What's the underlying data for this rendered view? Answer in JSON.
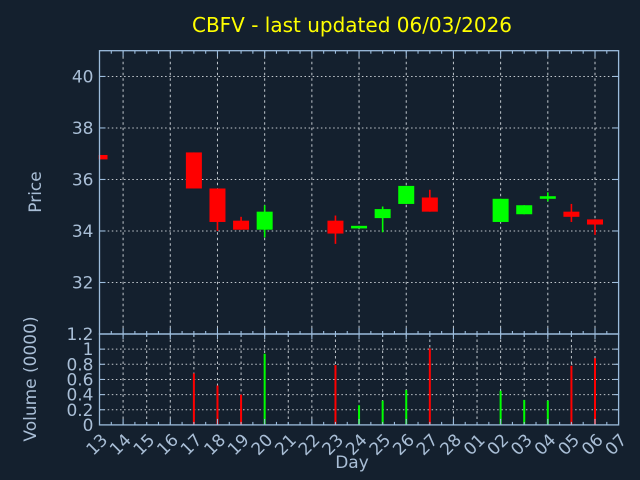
{
  "title": "CBFV - last updated 06/03/2026",
  "axes": {
    "price": {
      "label": "Price",
      "tick_labels": [
        "40",
        "38",
        "36",
        "34",
        "32"
      ],
      "tick_values": [
        40,
        38,
        36,
        34,
        32
      ],
      "ylim": [
        30,
        41
      ]
    },
    "volume": {
      "label": "Volume (0000)",
      "tick_labels": [
        "1.2",
        "1",
        "0.8",
        "0.6",
        "0.4",
        "0.2",
        "0"
      ],
      "tick_values": [
        1.2,
        1.0,
        0.8,
        0.6,
        0.4,
        0.2,
        0
      ],
      "ylim": [
        0,
        1.2
      ]
    },
    "x": {
      "label": "Day",
      "tick_labels": [
        "13",
        "14",
        "15",
        "16",
        "17",
        "18",
        "19",
        "20",
        "21",
        "22",
        "23",
        "24",
        "25",
        "26",
        "27",
        "28",
        "01",
        "02",
        "03",
        "04",
        "05",
        "06",
        "07"
      ]
    }
  },
  "chart_data": {
    "type": "candlestick",
    "title": "CBFV - last updated 06/03/2026",
    "xlabel": "Day",
    "ylabel_price": "Price",
    "ylabel_volume": "Volume (0000)",
    "price_ylim": [
      30,
      41
    ],
    "volume_ylim": [
      0,
      1.2
    ],
    "grid": "dotted",
    "x_categories": [
      "13",
      "14",
      "15",
      "16",
      "17",
      "18",
      "19",
      "20",
      "21",
      "22",
      "23",
      "24",
      "25",
      "26",
      "27",
      "28",
      "01",
      "02",
      "03",
      "04",
      "05",
      "06",
      "07"
    ],
    "candles": [
      {
        "day": "13",
        "open": 36.95,
        "high": 36.95,
        "low": 36.78,
        "close": 36.78,
        "volume": null
      },
      {
        "day": "17",
        "open": 37.05,
        "high": 37.05,
        "low": 35.65,
        "close": 35.65,
        "volume": 0.68
      },
      {
        "day": "18",
        "open": 35.65,
        "high": 35.65,
        "low": 34.0,
        "close": 34.35,
        "volume": 0.52
      },
      {
        "day": "19",
        "open": 34.4,
        "high": 34.55,
        "low": 34.05,
        "close": 34.05,
        "volume": 0.4
      },
      {
        "day": "20",
        "open": 34.05,
        "high": 35.0,
        "low": 33.75,
        "close": 34.75,
        "volume": 0.94
      },
      {
        "day": "23",
        "open": 34.4,
        "high": 34.6,
        "low": 33.5,
        "close": 33.9,
        "volume": 0.79
      },
      {
        "day": "24",
        "open": 34.1,
        "high": 34.2,
        "low": 34.1,
        "close": 34.2,
        "volume": 0.26
      },
      {
        "day": "25",
        "open": 34.5,
        "high": 34.95,
        "low": 33.95,
        "close": 34.85,
        "volume": 0.32
      },
      {
        "day": "26",
        "open": 35.05,
        "high": 35.75,
        "low": 35.05,
        "close": 35.75,
        "volume": 0.46
      },
      {
        "day": "27",
        "open": 35.3,
        "high": 35.6,
        "low": 34.75,
        "close": 34.75,
        "volume": 1.01
      },
      {
        "day": "02",
        "open": 34.35,
        "high": 35.25,
        "low": 34.35,
        "close": 35.25,
        "volume": 0.45
      },
      {
        "day": "03",
        "open": 34.65,
        "high": 35.0,
        "low": 34.65,
        "close": 35.0,
        "volume": 0.33
      },
      {
        "day": "04",
        "open": 35.3,
        "high": 35.5,
        "low": 35.15,
        "close": 35.35,
        "volume": 0.32
      },
      {
        "day": "05",
        "open": 34.75,
        "high": 35.05,
        "low": 34.35,
        "close": 34.55,
        "volume": 0.78
      },
      {
        "day": "06",
        "open": 34.45,
        "high": 34.45,
        "low": 33.85,
        "close": 34.25,
        "volume": 0.88
      }
    ]
  },
  "colors": {
    "background": "#14202e",
    "up": "#00ff00",
    "down": "#ff0000",
    "title": "#ffff00",
    "spine": "#9cbcdc",
    "tick_label": "#a9bed6",
    "grid": "#c2c8ce"
  }
}
